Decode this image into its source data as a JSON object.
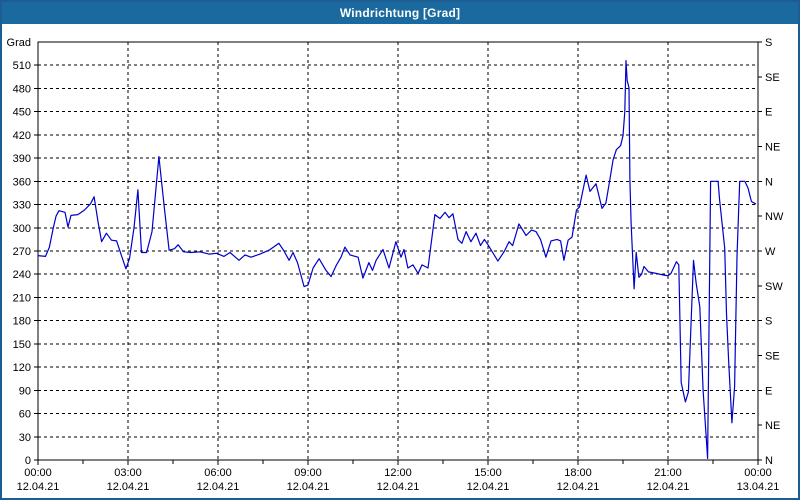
{
  "window": {
    "title": "Windrichtung [Grad]"
  },
  "colors": {
    "titlebar_bg": "#1a699f",
    "titlebar_text": "#ffffff",
    "window_border": "#1e5c94",
    "plot_bg": "#ffffff",
    "grid": "#000000",
    "axis": "#000000",
    "text": "#000000",
    "line": "#0000cc"
  },
  "chart_data": {
    "type": "line",
    "title": "Windrichtung [Grad]",
    "ylabel_left": "Grad",
    "y_range": [
      0,
      540
    ],
    "y_tick_step": 30,
    "grid": "dashed",
    "right_axis": {
      "tick_step_deg": 45,
      "labels_bottom_to_top": [
        "N",
        "NE",
        "E",
        "SE",
        "S",
        "SW",
        "W",
        "NW",
        "N",
        "NE",
        "E",
        "SE",
        "S"
      ]
    },
    "x_range_hours": [
      0,
      24
    ],
    "x_minor_step_hours": 1.5,
    "x_major_ticks": [
      {
        "hour": 0,
        "time": "00:00",
        "date": "12.04.21"
      },
      {
        "hour": 3,
        "time": "03:00",
        "date": "12.04.21"
      },
      {
        "hour": 6,
        "time": "06:00",
        "date": "12.04.21"
      },
      {
        "hour": 9,
        "time": "09:00",
        "date": "12.04.21"
      },
      {
        "hour": 12,
        "time": "12:00",
        "date": "12.04.21"
      },
      {
        "hour": 15,
        "time": "15:00",
        "date": "12.04.21"
      },
      {
        "hour": 18,
        "time": "18:00",
        "date": "12.04.21"
      },
      {
        "hour": 21,
        "time": "21:00",
        "date": "12.04.21"
      },
      {
        "hour": 24,
        "time": "00:00",
        "date": "13.04.21"
      }
    ],
    "series": [
      {
        "name": "Windrichtung",
        "unit": "Grad",
        "points": [
          [
            0.0,
            264
          ],
          [
            0.25,
            263
          ],
          [
            0.38,
            275
          ],
          [
            0.5,
            298
          ],
          [
            0.6,
            315
          ],
          [
            0.7,
            322
          ],
          [
            0.9,
            320
          ],
          [
            1.0,
            301
          ],
          [
            1.1,
            316
          ],
          [
            1.33,
            317
          ],
          [
            1.55,
            323
          ],
          [
            1.75,
            331
          ],
          [
            1.87,
            340
          ],
          [
            2.0,
            308
          ],
          [
            2.12,
            282
          ],
          [
            2.28,
            293
          ],
          [
            2.45,
            284
          ],
          [
            2.62,
            283
          ],
          [
            2.8,
            262
          ],
          [
            2.93,
            247
          ],
          [
            3.05,
            260
          ],
          [
            3.2,
            300
          ],
          [
            3.33,
            349
          ],
          [
            3.45,
            268
          ],
          [
            3.62,
            268
          ],
          [
            3.8,
            295
          ],
          [
            4.03,
            392
          ],
          [
            4.2,
            330
          ],
          [
            4.37,
            271
          ],
          [
            4.55,
            273
          ],
          [
            4.67,
            278
          ],
          [
            4.85,
            269
          ],
          [
            5.1,
            268
          ],
          [
            5.4,
            269
          ],
          [
            5.7,
            266
          ],
          [
            5.95,
            267
          ],
          [
            6.2,
            263
          ],
          [
            6.4,
            268
          ],
          [
            6.7,
            258
          ],
          [
            6.9,
            265
          ],
          [
            7.1,
            262
          ],
          [
            7.4,
            266
          ],
          [
            7.7,
            271
          ],
          [
            8.03,
            280
          ],
          [
            8.2,
            270
          ],
          [
            8.37,
            258
          ],
          [
            8.5,
            268
          ],
          [
            8.65,
            255
          ],
          [
            8.87,
            224
          ],
          [
            9.0,
            226
          ],
          [
            9.17,
            248
          ],
          [
            9.37,
            260
          ],
          [
            9.6,
            245
          ],
          [
            9.77,
            237
          ],
          [
            9.95,
            252
          ],
          [
            10.1,
            262
          ],
          [
            10.23,
            275
          ],
          [
            10.4,
            265
          ],
          [
            10.67,
            262
          ],
          [
            10.83,
            235
          ],
          [
            11.03,
            255
          ],
          [
            11.15,
            245
          ],
          [
            11.27,
            258
          ],
          [
            11.5,
            272
          ],
          [
            11.7,
            248
          ],
          [
            11.93,
            282
          ],
          [
            12.1,
            262
          ],
          [
            12.2,
            272
          ],
          [
            12.33,
            248
          ],
          [
            12.5,
            252
          ],
          [
            12.67,
            241
          ],
          [
            12.8,
            252
          ],
          [
            13.0,
            248
          ],
          [
            13.23,
            317
          ],
          [
            13.4,
            312
          ],
          [
            13.57,
            320
          ],
          [
            13.7,
            313
          ],
          [
            13.83,
            318
          ],
          [
            14.0,
            285
          ],
          [
            14.13,
            280
          ],
          [
            14.27,
            295
          ],
          [
            14.43,
            282
          ],
          [
            14.6,
            293
          ],
          [
            14.75,
            277
          ],
          [
            14.88,
            285
          ],
          [
            15.0,
            278
          ],
          [
            15.33,
            257
          ],
          [
            15.55,
            270
          ],
          [
            15.7,
            282
          ],
          [
            15.82,
            277
          ],
          [
            15.92,
            290
          ],
          [
            16.03,
            305
          ],
          [
            16.27,
            290
          ],
          [
            16.45,
            297
          ],
          [
            16.6,
            295
          ],
          [
            16.75,
            285
          ],
          [
            16.93,
            262
          ],
          [
            17.1,
            283
          ],
          [
            17.3,
            285
          ],
          [
            17.42,
            283
          ],
          [
            17.53,
            258
          ],
          [
            17.67,
            284
          ],
          [
            17.8,
            288
          ],
          [
            17.95,
            323
          ],
          [
            18.05,
            327
          ],
          [
            18.27,
            368
          ],
          [
            18.4,
            347
          ],
          [
            18.6,
            357
          ],
          [
            18.8,
            325
          ],
          [
            18.93,
            332
          ],
          [
            19.07,
            364
          ],
          [
            19.17,
            388
          ],
          [
            19.28,
            401
          ],
          [
            19.42,
            406
          ],
          [
            19.5,
            419
          ],
          [
            19.56,
            450
          ],
          [
            19.6,
            516
          ],
          [
            19.64,
            490
          ],
          [
            19.7,
            481
          ],
          [
            19.73,
            362
          ],
          [
            19.77,
            306
          ],
          [
            19.87,
            221
          ],
          [
            19.94,
            268
          ],
          [
            20.03,
            236
          ],
          [
            20.12,
            240
          ],
          [
            20.2,
            250
          ],
          [
            20.35,
            243
          ],
          [
            20.6,
            241
          ],
          [
            20.85,
            239
          ],
          [
            21.0,
            238
          ],
          [
            21.1,
            241
          ],
          [
            21.28,
            256
          ],
          [
            21.36,
            252
          ],
          [
            21.44,
            100
          ],
          [
            21.58,
            75
          ],
          [
            21.68,
            88
          ],
          [
            21.85,
            258
          ],
          [
            21.94,
            228
          ],
          [
            22.06,
            198
          ],
          [
            22.17,
            90
          ],
          [
            22.32,
            2
          ],
          [
            22.42,
            360
          ],
          [
            22.67,
            360
          ],
          [
            22.72,
            336
          ],
          [
            22.89,
            274
          ],
          [
            22.95,
            189
          ],
          [
            23.02,
            129
          ],
          [
            23.13,
            48
          ],
          [
            23.22,
            95
          ],
          [
            23.3,
            263
          ],
          [
            23.39,
            360
          ],
          [
            23.56,
            360
          ],
          [
            23.67,
            351
          ],
          [
            23.78,
            334
          ],
          [
            23.92,
            331
          ]
        ]
      }
    ]
  }
}
